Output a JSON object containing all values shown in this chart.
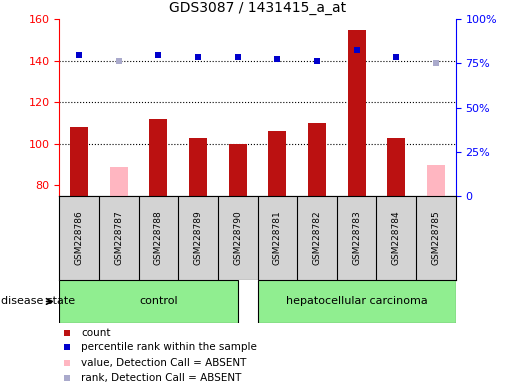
{
  "title": "GDS3087 / 1431415_a_at",
  "samples": [
    "GSM228786",
    "GSM228787",
    "GSM228788",
    "GSM228789",
    "GSM228790",
    "GSM228781",
    "GSM228782",
    "GSM228783",
    "GSM228784",
    "GSM228785"
  ],
  "count_values": [
    108,
    null,
    112,
    103,
    100,
    106,
    110,
    155,
    103,
    null
  ],
  "absent_value_values": [
    null,
    89,
    null,
    null,
    null,
    null,
    null,
    null,
    null,
    90
  ],
  "rank_values": [
    143,
    140,
    143,
    142,
    142,
    141,
    140,
    145,
    142,
    139
  ],
  "rank_is_absent": [
    false,
    true,
    false,
    false,
    false,
    false,
    false,
    false,
    false,
    true
  ],
  "ylim_left": [
    75,
    160
  ],
  "ylim_right": [
    0,
    100
  ],
  "yticks_left": [
    80,
    100,
    120,
    140,
    160
  ],
  "ytick_labels_right": [
    "0",
    "25%",
    "50%",
    "75%",
    "100%"
  ],
  "yticks_right_vals": [
    0,
    25,
    50,
    75,
    100
  ],
  "bar_color_present": "#BB1111",
  "bar_color_absent": "#FFB6C1",
  "rank_color_present": "#0000CC",
  "rank_color_absent": "#AAAACC",
  "bar_width": 0.45,
  "legend_items": [
    {
      "label": "count",
      "color": "#BB1111"
    },
    {
      "label": "percentile rank within the sample",
      "color": "#0000CC"
    },
    {
      "label": "value, Detection Call = ABSENT",
      "color": "#FFB6C1"
    },
    {
      "label": "rank, Detection Call = ABSENT",
      "color": "#AAAACC"
    }
  ],
  "grid_dotted_values": [
    100,
    120,
    140
  ],
  "tick_label_area_color": "#D3D3D3",
  "group_green": "#90EE90",
  "group_divider": 4.5,
  "n_control": 5,
  "n_total": 10
}
